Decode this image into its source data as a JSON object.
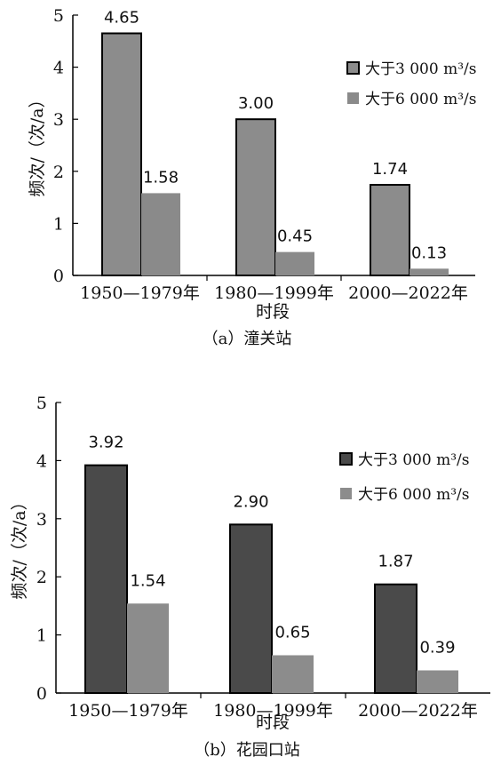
{
  "chart_data": [
    {
      "type": "bar",
      "title": "（a）潼关站",
      "xlabel": "时段",
      "ylabel": "频次/（次/a）",
      "ylim": [
        0,
        5
      ],
      "yticks": [
        "0",
        "1",
        "2",
        "3",
        "4",
        "5"
      ],
      "categories": [
        "1950—1979年",
        "1980—1999年",
        "2000—2022年"
      ],
      "series": [
        {
          "name": "大于3 000 m³/s",
          "values": [
            4.65,
            3.0,
            1.74
          ],
          "labels": [
            "4.65",
            "3.00",
            "1.74"
          ],
          "color": "#8c8c8c",
          "stroke": "#000000"
        },
        {
          "name": "大于6 000 m³/s",
          "values": [
            1.58,
            0.45,
            0.13
          ],
          "labels": [
            "1.58",
            "0.45",
            "0.13"
          ],
          "color": "#8a8a8a",
          "stroke": "none"
        }
      ],
      "legend_position": "top-right",
      "grid": false
    },
    {
      "type": "bar",
      "title": "（b）花园口站",
      "xlabel": "时段",
      "ylabel": "频次/（次/a）",
      "ylim": [
        0,
        5
      ],
      "yticks": [
        "0",
        "1",
        "2",
        "3",
        "4",
        "5"
      ],
      "categories": [
        "1950—1979年",
        "1980—1999年",
        "2000—2022年"
      ],
      "series": [
        {
          "name": "大于3 000 m³/s",
          "values": [
            3.92,
            2.9,
            1.87
          ],
          "labels": [
            "3.92",
            "2.90",
            "1.87"
          ],
          "color": "#4a4a4a",
          "stroke": "#000000"
        },
        {
          "name": "大于6 000 m³/s",
          "values": [
            1.54,
            0.65,
            0.39
          ],
          "labels": [
            "1.54",
            "0.65",
            "0.39"
          ],
          "color": "#8c8c8c",
          "stroke": "none"
        }
      ],
      "legend_position": "top-right",
      "grid": false
    }
  ]
}
